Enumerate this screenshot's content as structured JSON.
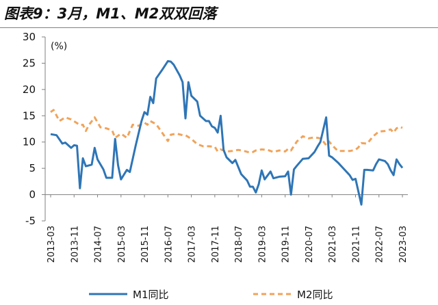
{
  "title": "图表9：3月，M1、M2双双回落",
  "chart_data": {
    "type": "line",
    "unit_label": "(%)",
    "ylim": [
      -5,
      30
    ],
    "yticks": [
      -5,
      0,
      5,
      10,
      15,
      20,
      25,
      30
    ],
    "xlim": [
      "2013-03",
      "2023-03"
    ],
    "xticks": [
      "2013-03",
      "2013-11",
      "2014-07",
      "2015-03",
      "2015-11",
      "2016-07",
      "2017-03",
      "2017-11",
      "2018-07",
      "2019-03",
      "2019-11",
      "2020-07",
      "2021-03",
      "2021-11",
      "2022-07",
      "2023-03"
    ],
    "grid": false,
    "legend_position": "bottom",
    "series": [
      {
        "name": "M1同比",
        "color": "#2e75b6",
        "style": "solid",
        "points": [
          [
            "2013-03",
            11.5
          ],
          [
            "2013-05",
            11.3
          ],
          [
            "2013-07",
            9.7
          ],
          [
            "2013-08",
            9.9
          ],
          [
            "2013-10",
            8.9
          ],
          [
            "2013-11",
            9.4
          ],
          [
            "2013-12",
            9.3
          ],
          [
            "2014-01",
            1.2
          ],
          [
            "2014-02",
            6.9
          ],
          [
            "2014-03",
            5.4
          ],
          [
            "2014-05",
            5.7
          ],
          [
            "2014-06",
            8.9
          ],
          [
            "2014-07",
            6.7
          ],
          [
            "2014-09",
            4.8
          ],
          [
            "2014-10",
            3.2
          ],
          [
            "2014-12",
            3.2
          ],
          [
            "2015-01",
            10.6
          ],
          [
            "2015-02",
            5.6
          ],
          [
            "2015-03",
            2.9
          ],
          [
            "2015-05",
            4.7
          ],
          [
            "2015-06",
            4.3
          ],
          [
            "2015-08",
            9.3
          ],
          [
            "2015-10",
            14.0
          ],
          [
            "2015-11",
            15.7
          ],
          [
            "2015-12",
            15.2
          ],
          [
            "2016-01",
            18.6
          ],
          [
            "2016-02",
            17.4
          ],
          [
            "2016-03",
            22.1
          ],
          [
            "2016-05",
            23.7
          ],
          [
            "2016-07",
            25.4
          ],
          [
            "2016-08",
            25.3
          ],
          [
            "2016-09",
            24.7
          ],
          [
            "2016-11",
            22.7
          ],
          [
            "2016-12",
            21.4
          ],
          [
            "2017-01",
            14.5
          ],
          [
            "2017-02",
            21.4
          ],
          [
            "2017-03",
            18.8
          ],
          [
            "2017-05",
            17.7
          ],
          [
            "2017-06",
            15.0
          ],
          [
            "2017-08",
            14.0
          ],
          [
            "2017-09",
            14.0
          ],
          [
            "2017-10",
            13.0
          ],
          [
            "2017-11",
            12.7
          ],
          [
            "2017-12",
            11.8
          ],
          [
            "2018-01",
            15.0
          ],
          [
            "2018-02",
            8.5
          ],
          [
            "2018-03",
            7.1
          ],
          [
            "2018-05",
            6.0
          ],
          [
            "2018-06",
            6.6
          ],
          [
            "2018-08",
            3.9
          ],
          [
            "2018-10",
            2.7
          ],
          [
            "2018-11",
            1.5
          ],
          [
            "2018-12",
            1.5
          ],
          [
            "2019-01",
            0.4
          ],
          [
            "2019-02",
            2.0
          ],
          [
            "2019-03",
            4.6
          ],
          [
            "2019-04",
            2.9
          ],
          [
            "2019-06",
            4.4
          ],
          [
            "2019-07",
            3.1
          ],
          [
            "2019-09",
            3.4
          ],
          [
            "2019-11",
            3.5
          ],
          [
            "2019-12",
            4.4
          ],
          [
            "2020-01",
            0.0
          ],
          [
            "2020-02",
            4.8
          ],
          [
            "2020-03",
            5.5
          ],
          [
            "2020-05",
            6.8
          ],
          [
            "2020-07",
            6.9
          ],
          [
            "2020-09",
            8.1
          ],
          [
            "2020-10",
            9.1
          ],
          [
            "2020-11",
            10.0
          ],
          [
            "2021-01",
            14.7
          ],
          [
            "2021-02",
            7.4
          ],
          [
            "2021-03",
            7.1
          ],
          [
            "2021-05",
            6.1
          ],
          [
            "2021-07",
            4.9
          ],
          [
            "2021-09",
            3.7
          ],
          [
            "2021-10",
            2.8
          ],
          [
            "2021-11",
            3.0
          ],
          [
            "2022-01",
            -1.9
          ],
          [
            "2022-02",
            4.7
          ],
          [
            "2022-03",
            4.7
          ],
          [
            "2022-05",
            4.6
          ],
          [
            "2022-06",
            5.8
          ],
          [
            "2022-07",
            6.7
          ],
          [
            "2022-09",
            6.4
          ],
          [
            "2022-10",
            5.8
          ],
          [
            "2022-11",
            4.6
          ],
          [
            "2022-12",
            3.7
          ],
          [
            "2023-01",
            6.7
          ],
          [
            "2023-02",
            5.8
          ],
          [
            "2023-03",
            5.1
          ]
        ]
      },
      {
        "name": "M2同比",
        "color": "#f0a35a",
        "style": "dashed",
        "points": [
          [
            "2013-03",
            15.7
          ],
          [
            "2013-04",
            16.1
          ],
          [
            "2013-06",
            14.0
          ],
          [
            "2013-08",
            14.7
          ],
          [
            "2013-10",
            14.3
          ],
          [
            "2013-12",
            13.6
          ],
          [
            "2014-01",
            13.2
          ],
          [
            "2014-02",
            13.3
          ],
          [
            "2014-03",
            12.1
          ],
          [
            "2014-04",
            13.2
          ],
          [
            "2014-06",
            14.7
          ],
          [
            "2014-08",
            12.8
          ],
          [
            "2014-10",
            12.6
          ],
          [
            "2014-12",
            12.2
          ],
          [
            "2015-01",
            10.8
          ],
          [
            "2015-03",
            11.6
          ],
          [
            "2015-05",
            10.8
          ],
          [
            "2015-07",
            13.3
          ],
          [
            "2015-09",
            13.1
          ],
          [
            "2015-11",
            13.7
          ],
          [
            "2015-12",
            13.3
          ],
          [
            "2016-01",
            14.0
          ],
          [
            "2016-03",
            13.4
          ],
          [
            "2016-05",
            11.8
          ],
          [
            "2016-07",
            10.2
          ],
          [
            "2016-08",
            11.4
          ],
          [
            "2016-10",
            11.6
          ],
          [
            "2016-12",
            11.3
          ],
          [
            "2017-01",
            11.3
          ],
          [
            "2017-03",
            10.6
          ],
          [
            "2017-05",
            9.6
          ],
          [
            "2017-07",
            9.2
          ],
          [
            "2017-09",
            9.2
          ],
          [
            "2017-11",
            9.1
          ],
          [
            "2017-12",
            8.2
          ],
          [
            "2018-01",
            8.6
          ],
          [
            "2018-03",
            8.2
          ],
          [
            "2018-05",
            8.3
          ],
          [
            "2018-07",
            8.5
          ],
          [
            "2018-09",
            8.3
          ],
          [
            "2018-11",
            8.0
          ],
          [
            "2018-12",
            8.1
          ],
          [
            "2019-01",
            8.4
          ],
          [
            "2019-03",
            8.6
          ],
          [
            "2019-05",
            8.5
          ],
          [
            "2019-07",
            8.1
          ],
          [
            "2019-09",
            8.4
          ],
          [
            "2019-11",
            8.2
          ],
          [
            "2019-12",
            8.7
          ],
          [
            "2020-01",
            8.4
          ],
          [
            "2020-03",
            10.1
          ],
          [
            "2020-05",
            11.1
          ],
          [
            "2020-07",
            10.7
          ],
          [
            "2020-09",
            10.9
          ],
          [
            "2020-11",
            10.7
          ],
          [
            "2020-12",
            10.1
          ],
          [
            "2021-01",
            9.4
          ],
          [
            "2021-02",
            10.1
          ],
          [
            "2021-03",
            9.4
          ],
          [
            "2021-05",
            8.3
          ],
          [
            "2021-07",
            8.3
          ],
          [
            "2021-09",
            8.3
          ],
          [
            "2021-11",
            8.5
          ],
          [
            "2021-12",
            9.0
          ],
          [
            "2022-01",
            9.8
          ],
          [
            "2022-03",
            9.7
          ],
          [
            "2022-05",
            11.1
          ],
          [
            "2022-07",
            12.0
          ],
          [
            "2022-09",
            12.1
          ],
          [
            "2022-11",
            12.4
          ],
          [
            "2022-12",
            11.8
          ],
          [
            "2023-01",
            12.6
          ],
          [
            "2023-02",
            12.9
          ],
          [
            "2023-03",
            12.7
          ]
        ]
      }
    ]
  }
}
